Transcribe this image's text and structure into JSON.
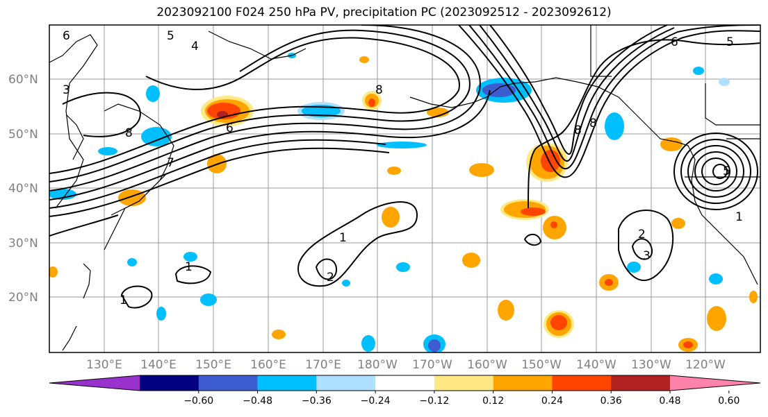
{
  "title": "2023092100 F024 250 hPa PV, precipitation PC (2023092512 - 2023092612)",
  "lat_labels": [
    "60°N",
    "50°N",
    "40°N",
    "30°N",
    "20°N"
  ],
  "lon_labels": [
    "130°E",
    "140°E",
    "150°E",
    "160°E",
    "170°E",
    "180°W",
    "170°W",
    "160°W",
    "150°W",
    "140°W",
    "130°W",
    "120°W"
  ],
  "contour_labels": [
    "6",
    "5",
    "4",
    "3",
    "8",
    "8",
    "6",
    "6",
    "5",
    "7",
    "8",
    "8",
    "1",
    "1",
    "2",
    "2",
    "3",
    "1",
    "1",
    "5"
  ],
  "colorbar": {
    "colors": [
      "#9932cc",
      "#000080",
      "#3c5ccf",
      "#00bfff",
      "#b0e0ff",
      "#ffffff",
      "#ffe985",
      "#ffa500",
      "#ff4500",
      "#b22222",
      "#ff82ab"
    ],
    "labels": [
      "−0.60",
      "−0.48",
      "−0.36",
      "−0.24",
      "−0.12",
      "0.12",
      "0.24",
      "0.36",
      "0.48",
      "0.60"
    ]
  }
}
